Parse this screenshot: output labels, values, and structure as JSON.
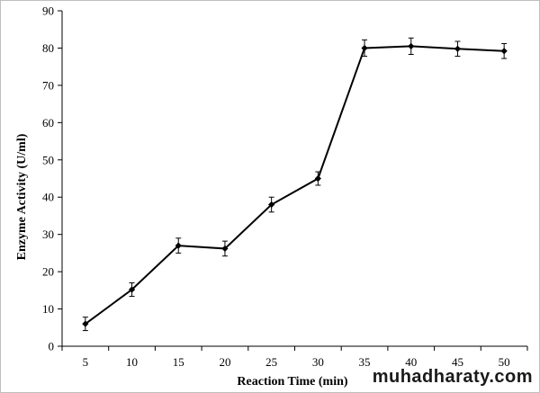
{
  "chart_data": {
    "type": "line",
    "xlabel": "Reaction Time (min)",
    "ylabel": "Enzyme Activity (U/ml)",
    "categories": [
      "5",
      "10",
      "15",
      "20",
      "25",
      "30",
      "35",
      "40",
      "45",
      "50"
    ],
    "series": [
      {
        "values": [
          6,
          15.2,
          27,
          26.2,
          38,
          45,
          80,
          80.5,
          79.8,
          79.2
        ],
        "error": [
          1.8,
          1.8,
          2,
          2,
          2,
          1.8,
          2.2,
          2.2,
          2,
          2
        ]
      }
    ],
    "ylim": [
      0,
      90
    ],
    "yticks": [
      0,
      10,
      20,
      30,
      40,
      50,
      60,
      70,
      80,
      90
    ],
    "grid": false,
    "line_color": "#000000"
  },
  "watermark": "muhadharaty.com"
}
